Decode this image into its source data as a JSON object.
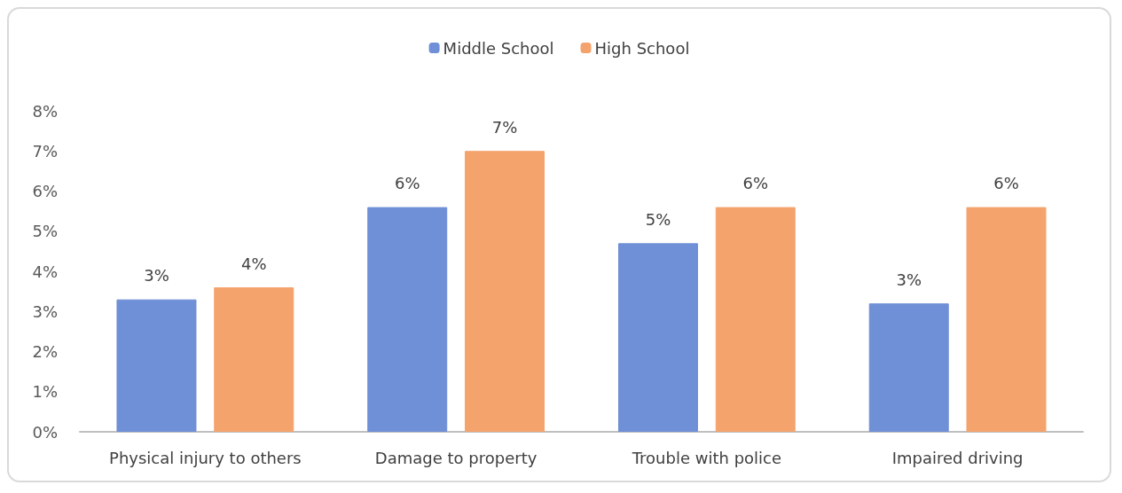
{
  "chart_data": {
    "type": "bar",
    "categories": [
      "Physical injury to others",
      "Damage to property",
      "Trouble with police",
      "Impaired driving"
    ],
    "series": [
      {
        "name": "Middle School",
        "color": "#6f8fd6",
        "values": [
          3.3,
          5.6,
          4.7,
          3.2
        ],
        "value_labels": [
          "3%",
          "6%",
          "5%",
          "3%"
        ]
      },
      {
        "name": "High School",
        "color": "#f4a36c",
        "values": [
          3.6,
          7.0,
          5.6,
          5.6
        ],
        "value_labels": [
          "4%",
          "7%",
          "6%",
          "6%"
        ]
      }
    ],
    "ylim": [
      0,
      8
    ],
    "yticks": [
      {
        "value": 0,
        "label": "0%"
      },
      {
        "value": 1,
        "label": "1%"
      },
      {
        "value": 2,
        "label": "2%"
      },
      {
        "value": 3,
        "label": "3%"
      },
      {
        "value": 4,
        "label": "4%"
      },
      {
        "value": 5,
        "label": "5%"
      },
      {
        "value": 6,
        "label": "6%"
      },
      {
        "value": 7,
        "label": "7%"
      },
      {
        "value": 8,
        "label": "8%"
      }
    ],
    "grid": false,
    "legend": "top"
  }
}
